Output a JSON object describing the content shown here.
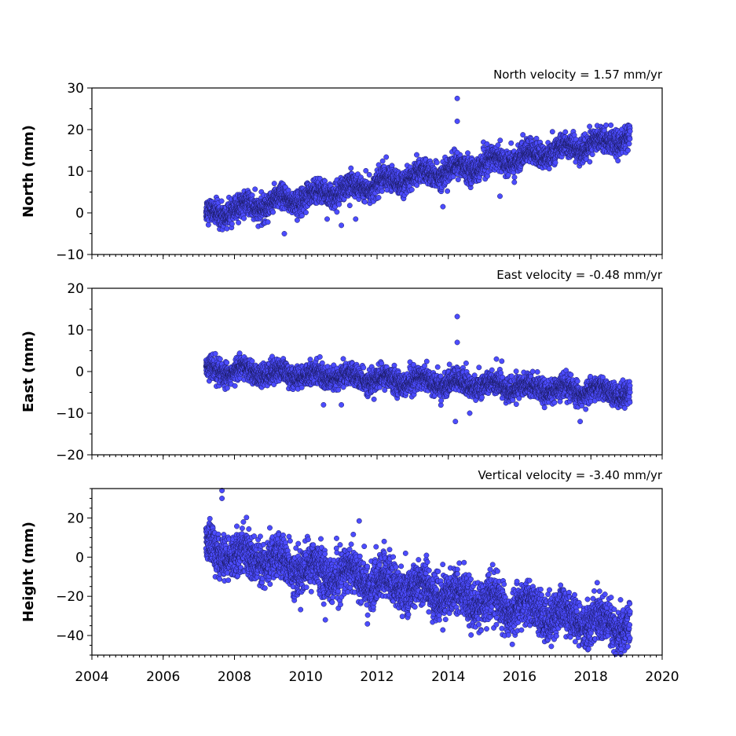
{
  "chart_data": {
    "type": "scatter",
    "x_axis": {
      "label": "",
      "range": [
        2004,
        2020
      ],
      "ticks": [
        2004,
        2006,
        2008,
        2010,
        2012,
        2014,
        2016,
        2018,
        2020
      ],
      "tick_labels": [
        "2004",
        "2006",
        "2008",
        "2010",
        "2012",
        "2014",
        "2016",
        "2018",
        "2020"
      ],
      "minor_step_years": 0.1667
    },
    "marker_color": "#4c4cff",
    "marker_edge_color": "#1a1a60",
    "grid": false,
    "panels": [
      {
        "id": "north",
        "ylabel": "North (mm)",
        "velocity_label": "North velocity = 1.57 mm/yr",
        "ylim": [
          -10,
          30
        ],
        "yticks": [
          -10,
          0,
          10,
          20,
          30
        ],
        "ytick_labels": [
          "−10",
          "0",
          "10",
          "20",
          "30"
        ],
        "data_span": [
          2007.2,
          2019.1
        ],
        "trend": {
          "velocity_mm_per_yr": 1.57,
          "value_at_start": -0.5
        },
        "scatter_sd": 1.4,
        "seasonal_amplitude": 1.2,
        "outliers": [
          [
            2014.25,
            27.5
          ],
          [
            2014.25,
            22.0
          ],
          [
            2014.25,
            14.5
          ],
          [
            2010.6,
            -1.5
          ],
          [
            2011.0,
            -3.0
          ],
          [
            2011.4,
            -1.5
          ],
          [
            2009.4,
            -5.0
          ],
          [
            2015.45,
            4.0
          ],
          [
            2013.85,
            1.5
          ]
        ]
      },
      {
        "id": "east",
        "ylabel": "East (mm)",
        "velocity_label": "East velocity = -0.48 mm/yr",
        "ylim": [
          -20,
          20
        ],
        "yticks": [
          -20,
          -10,
          0,
          10,
          20
        ],
        "ytick_labels": [
          "−20",
          "−10",
          "0",
          "10",
          "20"
        ],
        "data_span": [
          2007.2,
          2019.1
        ],
        "trend": {
          "velocity_mm_per_yr": -0.48,
          "value_at_start": 0.5
        },
        "scatter_sd": 1.3,
        "seasonal_amplitude": 1.0,
        "outliers": [
          [
            2014.25,
            13.2
          ],
          [
            2014.25,
            7.0
          ],
          [
            2014.5,
            2.0
          ],
          [
            2015.35,
            3.0
          ],
          [
            2015.5,
            2.5
          ],
          [
            2010.5,
            -8.0
          ],
          [
            2011.0,
            -8.0
          ],
          [
            2014.2,
            -12.0
          ],
          [
            2017.7,
            -12.0
          ],
          [
            2014.6,
            -10.0
          ]
        ]
      },
      {
        "id": "height",
        "ylabel": "Height (mm)",
        "velocity_label": "Vertical velocity = -3.40 mm/yr",
        "ylim": [
          -50,
          35
        ],
        "yticks": [
          -40,
          -20,
          0,
          20
        ],
        "ytick_labels": [
          "−40",
          "−20",
          "0",
          "20"
        ],
        "data_span": [
          2007.2,
          2019.1
        ],
        "trend": {
          "velocity_mm_per_yr": -3.4,
          "value_at_start": 4.0
        },
        "scatter_sd": 5.5,
        "seasonal_amplitude": 4.0,
        "outliers": [
          [
            2007.65,
            34.0
          ],
          [
            2007.65,
            30.0
          ],
          [
            2011.5,
            18.5
          ],
          [
            2010.55,
            -32.0
          ],
          [
            2018.85,
            -47.0
          ],
          [
            2012.2,
            8.0
          ]
        ]
      }
    ]
  }
}
